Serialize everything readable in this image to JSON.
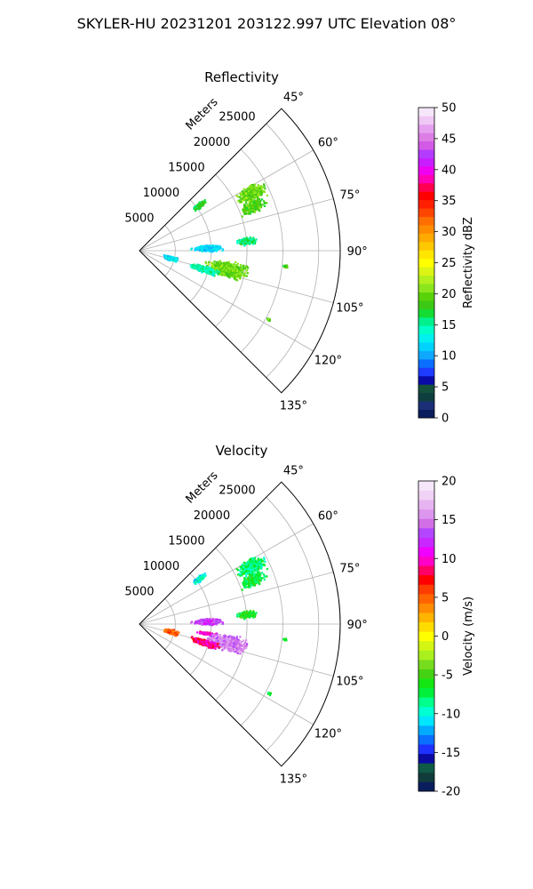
{
  "figure": {
    "title": "SKYLER-HU  20231201  203122.997 UTC Elevation 08°"
  },
  "colors": {
    "reflectivity_cmap": [
      "#0a1e5e",
      "#1b2f78",
      "#0f3e3e",
      "#14503c",
      "#0a0aa8",
      "#1e3cff",
      "#0a6eff",
      "#0fa8ff",
      "#00d2ff",
      "#00f0f0",
      "#00ffc8",
      "#00f08c",
      "#14dc32",
      "#3cc814",
      "#5ad20a",
      "#8ce61e",
      "#b4f01e",
      "#dcf514",
      "#ffff00",
      "#ffe600",
      "#ffc800",
      "#ffaa00",
      "#ff8c00",
      "#ff6e00",
      "#ff4600",
      "#ff1e00",
      "#ff0000",
      "#ff0050",
      "#ff00b4",
      "#f000f0",
      "#c81eff",
      "#b43cff",
      "#d25ae6",
      "#dc7ee6",
      "#e6a0f0",
      "#f0c8f5",
      "#f5e6fa"
    ],
    "velocity_cmap": [
      "#0a1e5e",
      "#123c3c",
      "#0f5a46",
      "#0a0aa0",
      "#1e32ff",
      "#0a6eff",
      "#00aaff",
      "#00e6ff",
      "#00ffd2",
      "#00ff8c",
      "#00f03c",
      "#14e614",
      "#46d214",
      "#78dc1e",
      "#aaf01e",
      "#d2f514",
      "#ffff00",
      "#ffdc00",
      "#ffb400",
      "#ff8c00",
      "#ff6400",
      "#ff3c00",
      "#ff0000",
      "#ff0064",
      "#ff00c8",
      "#f000ff",
      "#c828ff",
      "#b446ff",
      "#d26ee6",
      "#dc96ee",
      "#e6b4f0",
      "#f0d2f5",
      "#f5e6fa"
    ]
  },
  "chart_data": [
    {
      "type": "heatmap",
      "subtype": "radar-ppi-sector",
      "title": "Reflectivity",
      "radial_label": "Meters",
      "radial_ticks": [
        5000,
        10000,
        15000,
        20000,
        25000
      ],
      "radial_max": 28000,
      "azimuth_range": [
        45,
        135
      ],
      "azimuth_ticks": [
        45,
        60,
        75,
        90,
        105,
        120,
        135
      ],
      "azimuth_tick_labels": [
        "45°",
        "60°",
        "75°",
        "90°",
        "105°",
        "120°",
        "135°"
      ],
      "grid": true,
      "colorbar": {
        "label": "Reflectivity dBZ",
        "min": 0,
        "max": 50,
        "ticks": [
          0,
          5,
          10,
          15,
          20,
          25,
          30,
          35,
          40,
          45,
          50
        ],
        "tick_labels": [
          "0",
          "5",
          "10",
          "15",
          "20",
          "25",
          "30",
          "35",
          "40",
          "45",
          "50"
        ],
        "position": "right"
      },
      "echoes": [
        {
          "az": 63,
          "r": 17500,
          "span_az": 5,
          "span_r": 3000,
          "value": 20
        },
        {
          "az": 69,
          "r": 17000,
          "span_az": 4,
          "span_r": 2500,
          "value": 19
        },
        {
          "az": 53,
          "r": 10500,
          "span_az": 3,
          "span_r": 1500,
          "value": 17
        },
        {
          "az": 85,
          "r": 15000,
          "span_az": 3,
          "span_r": 2000,
          "value": 16
        },
        {
          "az": 88,
          "r": 9500,
          "span_az": 4,
          "span_r": 3000,
          "value": 12
        },
        {
          "az": 102,
          "r": 12500,
          "span_az": 7,
          "span_r": 4000,
          "value": 20
        },
        {
          "az": 106,
          "r": 9500,
          "span_az": 4,
          "span_r": 3000,
          "value": 15
        },
        {
          "az": 104,
          "r": 4500,
          "span_az": 6,
          "span_r": 1500,
          "value": 12
        },
        {
          "az": 96,
          "r": 20500,
          "span_az": 1,
          "span_r": 500,
          "value": 19
        },
        {
          "az": 118,
          "r": 20500,
          "span_az": 1,
          "span_r": 500,
          "value": 19
        }
      ]
    },
    {
      "type": "heatmap",
      "subtype": "radar-ppi-sector",
      "title": "Velocity",
      "radial_label": "Meters",
      "radial_ticks": [
        5000,
        10000,
        15000,
        20000,
        25000
      ],
      "radial_max": 28000,
      "azimuth_range": [
        45,
        135
      ],
      "azimuth_ticks": [
        45,
        60,
        75,
        90,
        105,
        120,
        135
      ],
      "azimuth_tick_labels": [
        "45°",
        "60°",
        "75°",
        "90°",
        "105°",
        "120°",
        "135°"
      ],
      "grid": true,
      "colorbar": {
        "label": "Velocity (m/s)",
        "min": -20,
        "max": 20,
        "ticks": [
          -20,
          -15,
          -10,
          -5,
          0,
          5,
          10,
          15,
          20
        ],
        "tick_labels": [
          "-20",
          "-15",
          "-10",
          "-5",
          "0",
          "5",
          "10",
          "15",
          "20"
        ],
        "position": "right"
      },
      "echoes": [
        {
          "az": 63,
          "r": 17500,
          "span_az": 5,
          "span_r": 3000,
          "value": -8
        },
        {
          "az": 69,
          "r": 17000,
          "span_az": 4,
          "span_r": 2500,
          "value": -7
        },
        {
          "az": 53,
          "r": 10500,
          "span_az": 3,
          "span_r": 1500,
          "value": -10
        },
        {
          "az": 85,
          "r": 15000,
          "span_az": 3,
          "span_r": 2000,
          "value": -6
        },
        {
          "az": 88,
          "r": 9500,
          "span_az": 4,
          "span_r": 3000,
          "value": 13
        },
        {
          "az": 98,
          "r": 9500,
          "span_az": 2,
          "span_r": 2000,
          "value": 10
        },
        {
          "az": 102,
          "r": 12500,
          "span_az": 7,
          "span_r": 4000,
          "value": 15
        },
        {
          "az": 106,
          "r": 9500,
          "span_az": 4,
          "span_r": 3000,
          "value": 9
        },
        {
          "az": 104,
          "r": 4500,
          "span_az": 6,
          "span_r": 1500,
          "value": 5
        },
        {
          "az": 96,
          "r": 20500,
          "span_az": 1,
          "span_r": 500,
          "value": -7
        },
        {
          "az": 118,
          "r": 20500,
          "span_az": 1,
          "span_r": 500,
          "value": -7
        }
      ]
    }
  ]
}
